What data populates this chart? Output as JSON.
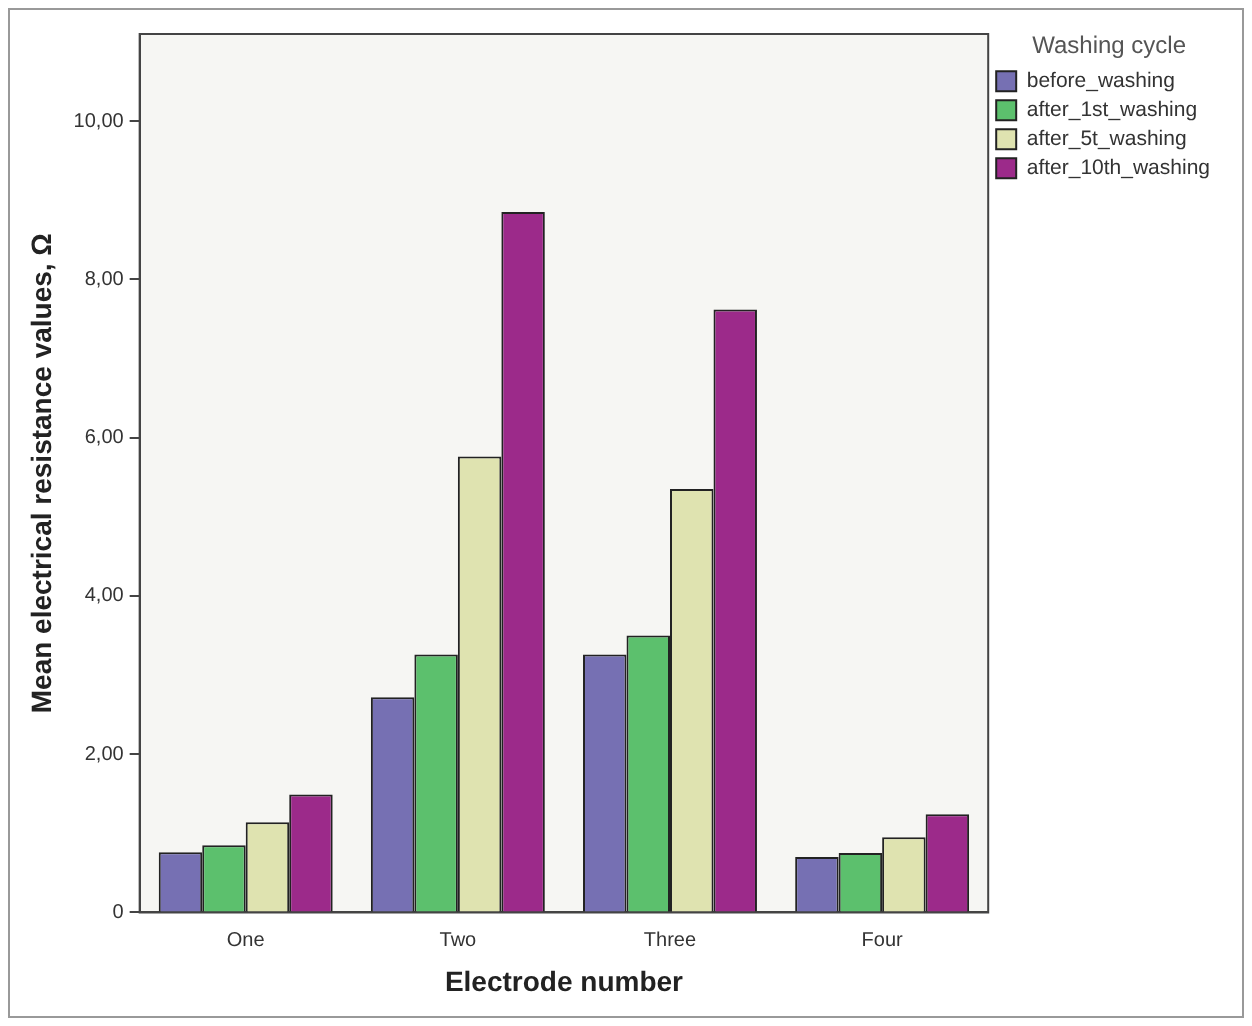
{
  "chart_data": {
    "type": "bar",
    "xlabel": "Electrode number",
    "ylabel": "Mean electrical resistance values, Ω",
    "legend_title": "Washing cycle",
    "legend": "right",
    "grid": false,
    "categories": [
      "One",
      "Two",
      "Three",
      "Four"
    ],
    "series": [
      {
        "name": "before_washing",
        "color": "#7670b3",
        "values": [
          0.76,
          2.72,
          3.26,
          0.7
        ]
      },
      {
        "name": "after_1st_washing",
        "color": "#5cc06d",
        "values": [
          0.85,
          3.26,
          3.5,
          0.75
        ]
      },
      {
        "name": "after_5t_washing",
        "color": "#dfe3b0",
        "values": [
          1.14,
          5.76,
          5.35,
          0.95
        ]
      },
      {
        "name": "after_10th_washing",
        "color": "#9c2a8a",
        "values": [
          1.49,
          8.85,
          7.62,
          1.24
        ]
      }
    ],
    "ylim": [
      0,
      11.1
    ],
    "yticks": [
      {
        "value": 0,
        "label": "0"
      },
      {
        "value": 2,
        "label": "2,00"
      },
      {
        "value": 4,
        "label": "4,00"
      },
      {
        "value": 6,
        "label": "6,00"
      },
      {
        "value": 8,
        "label": "8,00"
      },
      {
        "value": 10,
        "label": "10,00"
      }
    ]
  }
}
